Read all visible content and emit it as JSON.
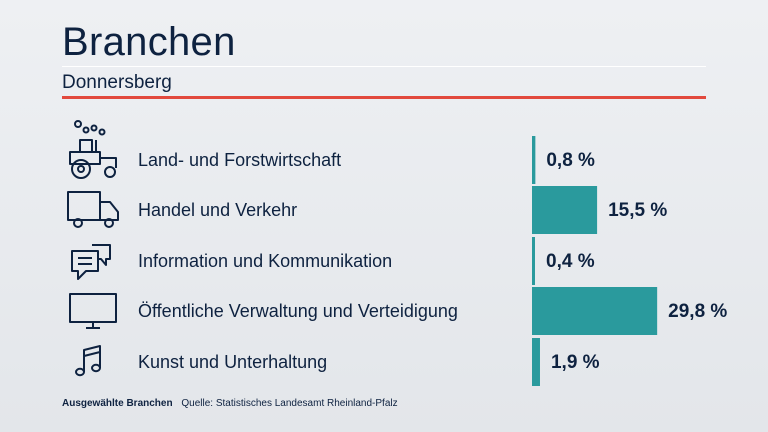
{
  "header": {
    "title": "Branchen",
    "subtitle": "Donnersberg"
  },
  "footer": {
    "label": "Ausgewählte Branchen",
    "source": "Quelle: Statistisches Landesamt Rheinland-Pfalz"
  },
  "colors": {
    "bar": "#2a9a9d",
    "accent": "#e2493d",
    "text": "#0e2240"
  },
  "chart_data": {
    "type": "bar",
    "orientation": "horizontal",
    "unit": "%",
    "categories": [
      "Land- und Forstwirtschaft",
      "Handel und Verkehr",
      "Information und Kommunikation",
      "Öffentliche Verwaltung und Verteidigung",
      "Kunst und Unterhaltung"
    ],
    "icons": [
      "tractor-icon",
      "truck-icon",
      "chat-bubbles-icon",
      "monitor-icon",
      "music-note-icon"
    ],
    "values": [
      0.8,
      15.5,
      0.4,
      29.8,
      1.9
    ],
    "value_labels": [
      "0,8 %",
      "15,5 %",
      "0,4 %",
      "29,8 %",
      "1,9 %"
    ],
    "title": "Branchen",
    "subtitle": "Donnersberg",
    "xlim": [
      0,
      30
    ],
    "grid": false,
    "legend": "none"
  }
}
